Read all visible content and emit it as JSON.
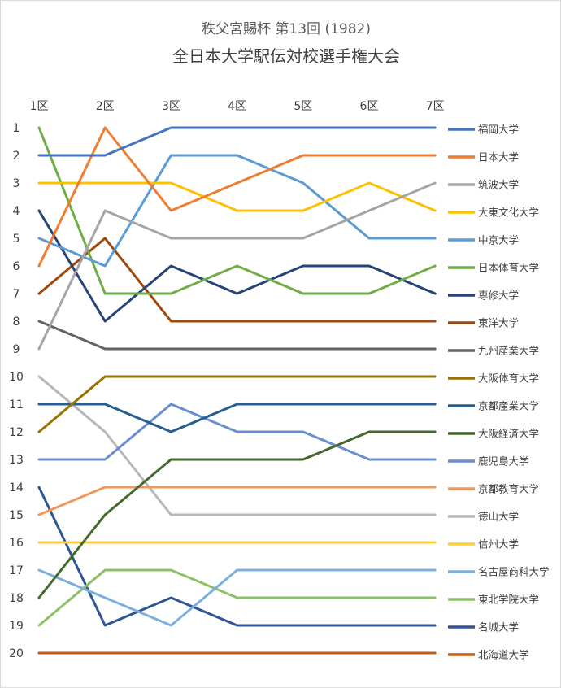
{
  "chart_data": {
    "type": "line",
    "title": "秩父宮賜杯 第13回 (1982)",
    "subtitle": "全日本大学駅伝対校選手権大会",
    "categories": [
      "1区",
      "2区",
      "3区",
      "4区",
      "5区",
      "6区",
      "7区"
    ],
    "y_ticks": [
      "1",
      "2",
      "3",
      "4",
      "5",
      "6",
      "7",
      "8",
      "9",
      "10",
      "11",
      "12",
      "13",
      "14",
      "15",
      "16",
      "17",
      "18",
      "19",
      "20"
    ],
    "ylim": [
      1,
      20
    ],
    "y_inverted": true,
    "grid": false,
    "legend_position": "right",
    "series": [
      {
        "name": "福岡大学",
        "color": "#4472C4",
        "values": [
          2,
          2,
          1,
          1,
          1,
          1,
          1
        ]
      },
      {
        "name": "日本大学",
        "color": "#ED7D31",
        "values": [
          6,
          1,
          4,
          3,
          2,
          2,
          2
        ]
      },
      {
        "name": "筑波大学",
        "color": "#A5A5A5",
        "values": [
          9,
          4,
          5,
          5,
          5,
          4,
          3
        ]
      },
      {
        "name": "大東文化大学",
        "color": "#FFC000",
        "values": [
          3,
          3,
          3,
          4,
          4,
          3,
          4
        ]
      },
      {
        "name": "中京大学",
        "color": "#5B9BD5",
        "values": [
          5,
          6,
          2,
          2,
          3,
          5,
          5
        ]
      },
      {
        "name": "日本体育大学",
        "color": "#70AD47",
        "values": [
          1,
          7,
          7,
          6,
          7,
          7,
          6
        ]
      },
      {
        "name": "専修大学",
        "color": "#264478",
        "values": [
          4,
          8,
          6,
          7,
          6,
          6,
          7
        ]
      },
      {
        "name": "東洋大学",
        "color": "#9E480E",
        "values": [
          7,
          5,
          8,
          8,
          8,
          8,
          8
        ]
      },
      {
        "name": "九州産業大学",
        "color": "#636363",
        "values": [
          8,
          9,
          9,
          9,
          9,
          9,
          9
        ]
      },
      {
        "name": "大阪体育大学",
        "color": "#997300",
        "values": [
          12,
          10,
          10,
          10,
          10,
          10,
          10
        ]
      },
      {
        "name": "京都産業大学",
        "color": "#255E91",
        "values": [
          11,
          11,
          12,
          11,
          11,
          11,
          11
        ]
      },
      {
        "name": "大阪経済大学",
        "color": "#43682B",
        "values": [
          18,
          15,
          13,
          13,
          13,
          12,
          12
        ]
      },
      {
        "name": "鹿児島大学",
        "color": "#698ED0",
        "values": [
          13,
          13,
          11,
          12,
          12,
          13,
          13
        ]
      },
      {
        "name": "京都教育大学",
        "color": "#F1975A",
        "values": [
          15,
          14,
          14,
          14,
          14,
          14,
          14
        ]
      },
      {
        "name": "徳山大学",
        "color": "#B7B7B7",
        "values": [
          10,
          12,
          15,
          15,
          15,
          15,
          15
        ]
      },
      {
        "name": "信州大学",
        "color": "#FFCD33",
        "values": [
          16,
          16,
          16,
          16,
          16,
          16,
          16
        ]
      },
      {
        "name": "名古屋商科大学",
        "color": "#7CAFDD",
        "values": [
          17,
          18,
          19,
          17,
          17,
          17,
          17
        ]
      },
      {
        "name": "東北学院大学",
        "color": "#8CC168",
        "values": [
          19,
          17,
          17,
          18,
          18,
          18,
          18
        ]
      },
      {
        "name": "名城大学",
        "color": "#2F5597",
        "values": [
          14,
          19,
          18,
          19,
          19,
          19,
          19
        ]
      },
      {
        "name": "北海道大学",
        "color": "#C55A11",
        "values": [
          20,
          20,
          20,
          20,
          20,
          20,
          20
        ]
      }
    ]
  }
}
